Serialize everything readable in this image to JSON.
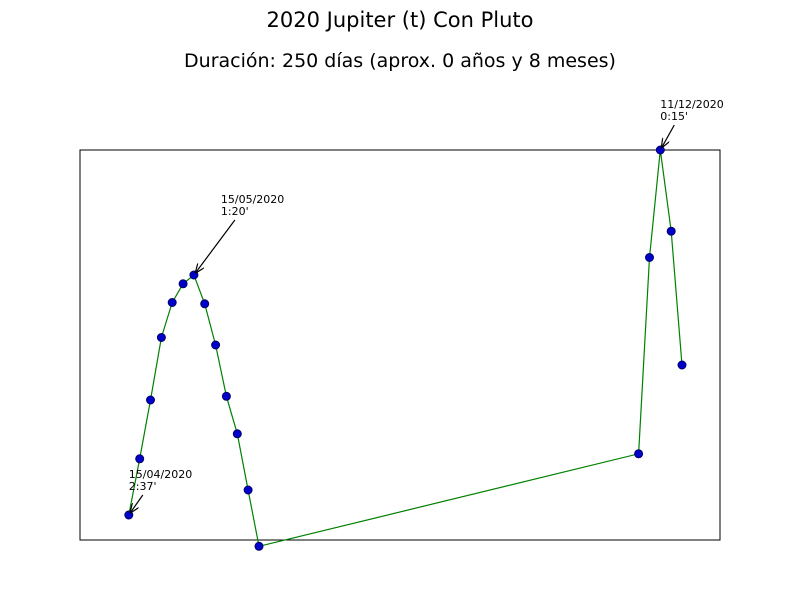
{
  "title": "2020 Jupiter (t) Con Pluto",
  "subtitle": "Duración: 250 días (aprox. 0 años y 8 meses)",
  "chart_data": {
    "type": "line",
    "grid": false,
    "series_color": "#008000",
    "marker_face": "#0000cc",
    "marker_edge": "#000066",
    "xlim": [
      -4.5,
      54.5
    ],
    "ylim": [
      -0.12,
      3.0
    ],
    "x": [
      0,
      1,
      2,
      3,
      4,
      5,
      6,
      7,
      8,
      9,
      10,
      11,
      12,
      47,
      48,
      49,
      50,
      51
    ],
    "y": [
      0.08,
      0.53,
      1.0,
      1.5,
      1.78,
      1.93,
      2.0,
      1.77,
      1.44,
      1.03,
      0.73,
      0.28,
      -0.17,
      0.57,
      2.14,
      3.0,
      2.35,
      1.28
    ],
    "annotations": [
      {
        "index": 0,
        "date": "15/04/2020",
        "value": "2:37'"
      },
      {
        "index": 6,
        "date": "15/05/2020",
        "value": "1:20'"
      },
      {
        "index": 15,
        "date": "11/12/2020",
        "value": "0:15'"
      }
    ]
  }
}
